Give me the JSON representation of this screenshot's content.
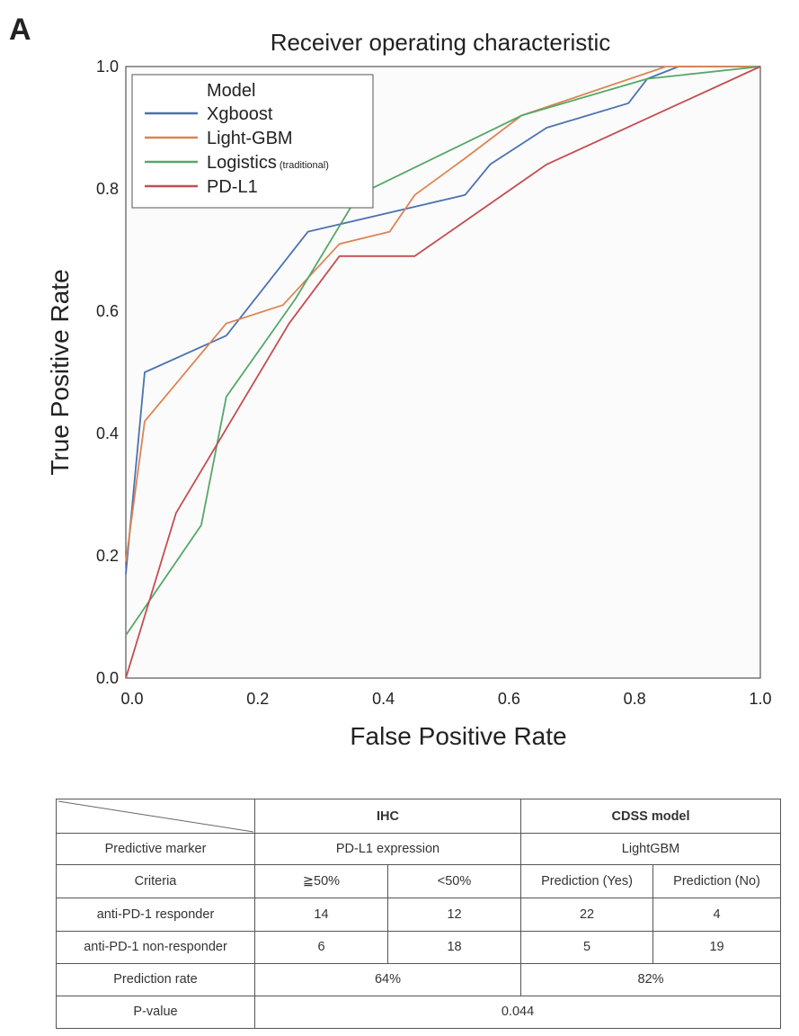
{
  "panel_label": "A",
  "chart_data": {
    "type": "line",
    "title": "Receiver operating characteristic",
    "xlabel": "False Positive Rate",
    "ylabel": "True Positive Rate",
    "xlim": [
      -0.01,
      1.0
    ],
    "ylim": [
      0.0,
      1.0
    ],
    "xticks": [
      0.0,
      0.2,
      0.4,
      0.6,
      0.8,
      1.0
    ],
    "yticks": [
      0.0,
      0.2,
      0.4,
      0.6,
      0.8,
      1.0
    ],
    "xtick_labels": [
      "0.0",
      "0.2",
      "0.4",
      "0.6",
      "0.8",
      "1.0"
    ],
    "ytick_labels": [
      "0.0",
      "0.2",
      "0.4",
      "0.6",
      "0.8",
      "1.0"
    ],
    "grid": false,
    "legend": {
      "placement": "top-left",
      "title": "Model",
      "entries": [
        {
          "label": "Xgboost",
          "note": ""
        },
        {
          "label": "Light-GBM",
          "note": ""
        },
        {
          "label": "Logistics",
          "note": "(traditional)"
        },
        {
          "label": "PD-L1",
          "note": ""
        }
      ]
    },
    "series": [
      {
        "name": "Xgboost",
        "color": "#4c72b0",
        "x": [
          -0.01,
          0.02,
          0.15,
          0.28,
          0.53,
          0.57,
          0.66,
          0.79,
          0.82,
          0.87,
          1.0
        ],
        "y": [
          0.17,
          0.5,
          0.56,
          0.73,
          0.79,
          0.84,
          0.9,
          0.94,
          0.98,
          1.0,
          1.0
        ]
      },
      {
        "name": "Light-GBM",
        "color": "#dd8452",
        "x": [
          -0.01,
          0.02,
          0.15,
          0.24,
          0.33,
          0.41,
          0.45,
          0.53,
          0.62,
          0.85,
          0.9,
          1.0
        ],
        "y": [
          0.19,
          0.42,
          0.58,
          0.61,
          0.71,
          0.73,
          0.79,
          0.85,
          0.92,
          1.0,
          1.0,
          1.0
        ]
      },
      {
        "name": "Logistics (traditional)",
        "color": "#55a868",
        "x": [
          -0.01,
          0.11,
          0.15,
          0.26,
          0.36,
          0.62,
          0.82,
          1.0
        ],
        "y": [
          0.07,
          0.25,
          0.46,
          0.62,
          0.79,
          0.92,
          0.98,
          1.0
        ]
      },
      {
        "name": "PD-L1",
        "color": "#c44e52",
        "x": [
          -0.01,
          0.07,
          0.25,
          0.33,
          0.45,
          0.66,
          1.0
        ],
        "y": [
          0.0,
          0.27,
          0.58,
          0.69,
          0.69,
          0.84,
          1.0
        ]
      }
    ]
  },
  "table": {
    "header": {
      "ihc": "IHC",
      "cdss": "CDSS model"
    },
    "rows": {
      "marker": {
        "label": "Predictive marker",
        "ihc": "PD-L1 expression",
        "cdss": "LightGBM"
      },
      "criteria": {
        "label": "Criteria",
        "ihc_a": "≧50%",
        "ihc_b": "<50%",
        "cdss_a": "Prediction (Yes)",
        "cdss_b": "Prediction (No)"
      },
      "responder": {
        "label": "anti-PD-1 responder",
        "ihc_a": "14",
        "ihc_b": "12",
        "cdss_a": "22",
        "cdss_b": "4"
      },
      "nonresponder": {
        "label": "anti-PD-1 non-responder",
        "ihc_a": "6",
        "ihc_b": "18",
        "cdss_a": "5",
        "cdss_b": "19"
      },
      "rate": {
        "label": "Prediction rate",
        "ihc": "64%",
        "cdss": "82%"
      },
      "pvalue": {
        "label": "P-value",
        "value": "0.044"
      }
    }
  }
}
